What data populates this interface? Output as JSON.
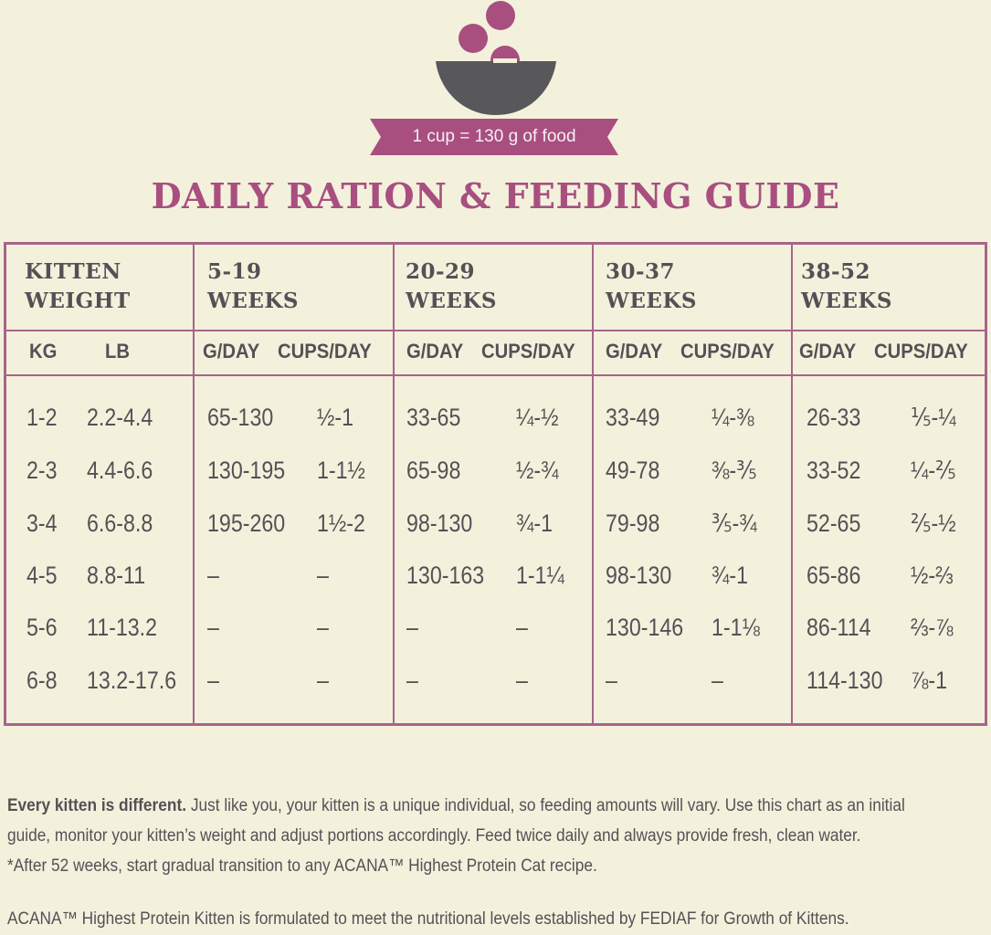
{
  "colors": {
    "accent": "#a84f80",
    "bowl": "#58575b",
    "background": "#f3f1dc",
    "border": "#a8648a"
  },
  "banner_text": "1 cup = 130 g of food",
  "title": "DAILY RATION & FEEDING GUIDE",
  "table": {
    "weight_header_line1": "KITTEN",
    "weight_header_line2": "WEIGHT",
    "kg_label": "KG",
    "lb_label": "LB",
    "age_groups": [
      {
        "line1": "5-19",
        "line2": "WEEKS",
        "g_label": "G/DAY",
        "cups_label": "CUPS/DAY"
      },
      {
        "line1": "20-29",
        "line2": "WEEKS",
        "g_label": "G/DAY",
        "cups_label": "CUPS/DAY"
      },
      {
        "line1": "30-37",
        "line2": "WEEKS",
        "g_label": "G/DAY",
        "cups_label": "CUPS/DAY"
      },
      {
        "line1": "38-52",
        "line2": "WEEKS",
        "g_label": "G/DAY",
        "cups_label": "CUPS/DAY"
      }
    ],
    "rows": [
      {
        "kg": "1-2",
        "lb": "2.2-4.4",
        "values": [
          [
            "65-130",
            "½-1"
          ],
          [
            "33-65",
            "¼-½"
          ],
          [
            "33-49",
            "¼-⅜"
          ],
          [
            "26-33",
            "⅕-¼"
          ]
        ]
      },
      {
        "kg": "2-3",
        "lb": "4.4-6.6",
        "values": [
          [
            "130-195",
            "1-1½"
          ],
          [
            "65-98",
            "½-¾"
          ],
          [
            "49-78",
            "⅜-⅗"
          ],
          [
            "33-52",
            "¼-⅖"
          ]
        ]
      },
      {
        "kg": "3-4",
        "lb": "6.6-8.8",
        "values": [
          [
            "195-260",
            "1½-2"
          ],
          [
            "98-130",
            "¾-1"
          ],
          [
            "79-98",
            "⅗-¾"
          ],
          [
            "52-65",
            "⅖-½"
          ]
        ]
      },
      {
        "kg": "4-5",
        "lb": "8.8-11",
        "values": [
          [
            "–",
            "–"
          ],
          [
            "130-163",
            "1-1¼"
          ],
          [
            "98-130",
            "¾-1"
          ],
          [
            "65-86",
            "½-⅔"
          ]
        ]
      },
      {
        "kg": "5-6",
        "lb": "11-13.2",
        "values": [
          [
            "–",
            "–"
          ],
          [
            "–",
            "–"
          ],
          [
            "130-146",
            "1-1⅛"
          ],
          [
            "86-114",
            "⅔-⅞"
          ]
        ]
      },
      {
        "kg": "6-8",
        "lb": "13.2-17.6",
        "values": [
          [
            "–",
            "–"
          ],
          [
            "–",
            "–"
          ],
          [
            "–",
            "–"
          ],
          [
            "114-130",
            "⅞-1"
          ]
        ]
      }
    ]
  },
  "notes": {
    "bold_intro": "Every kitten is different.",
    "line1": " Just like you, your kitten is a unique individual, so feeding amounts will vary. Use this chart as an initial",
    "line2": "guide, monitor your kitten’s weight and adjust portions accordingly. Feed twice daily and always provide fresh, clean water.",
    "line3": "*After 52 weeks, start gradual transition to any ACANA™ Highest Protein Cat recipe.",
    "footer": "ACANA™ Highest Protein Kitten is formulated to meet the nutritional levels established by FEDIAF  for Growth of Kittens."
  }
}
